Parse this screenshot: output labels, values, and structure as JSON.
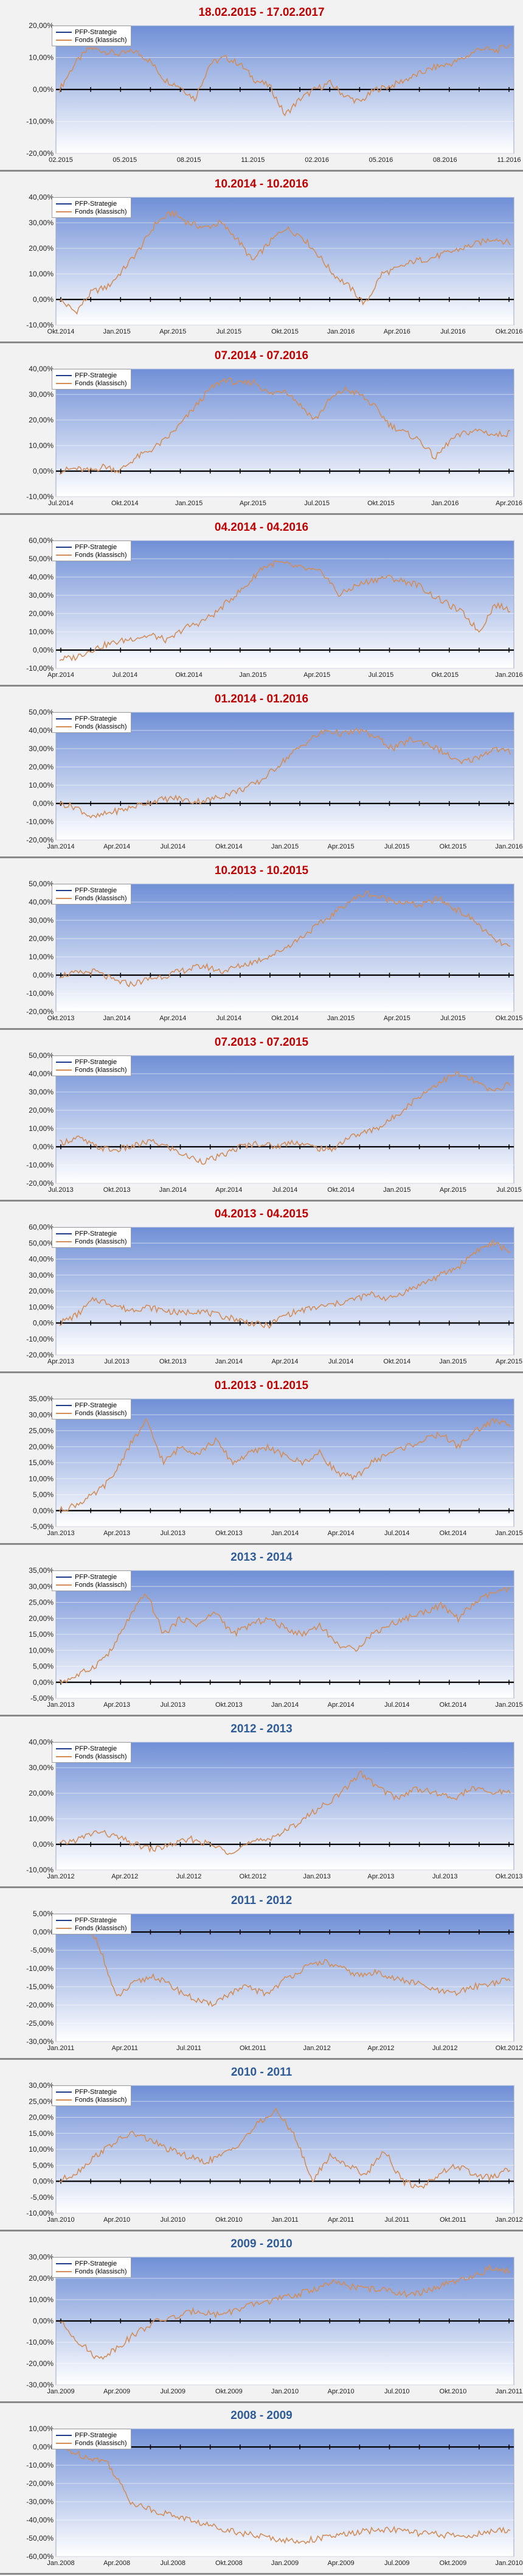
{
  "colors": {
    "strategy": "#1f3c88",
    "fund": "#d28e5a",
    "title_red": "#c00000",
    "title_blue": "#2e5c9a",
    "plot_top": "#6f8fd6",
    "plot_bottom": "#ffffff"
  },
  "chart_data": [
    {
      "type": "line",
      "title": "18.02.2015 - 17.02.2017",
      "title_color": "red",
      "series": [
        {
          "name": "PFP-Strategie"
        },
        {
          "name": "Fonds (klassisch)"
        }
      ],
      "yticks": [
        "20,00%",
        "10,00%",
        "0,00%",
        "-10,00%",
        "-20,00%"
      ],
      "ylim": [
        -20,
        20
      ],
      "xticks": [
        "02.2015",
        "05.2015",
        "08.2015",
        "11.2015",
        "02.2016",
        "05.2016",
        "08.2016",
        "11.2016"
      ],
      "fund_values": [
        0,
        8,
        13,
        12,
        11,
        12,
        9,
        3,
        1,
        -3,
        8,
        10,
        8,
        3,
        1,
        -8,
        -3,
        0,
        2,
        -2,
        -4,
        0,
        1,
        3,
        5,
        7,
        8,
        10,
        13,
        12,
        14
      ],
      "strategy_values": [
        0,
        0
      ]
    },
    {
      "type": "line",
      "title": "10.2014 - 10.2016",
      "title_color": "red",
      "series": [
        {
          "name": "PFP-Strategie"
        },
        {
          "name": "Fonds (klassisch)"
        }
      ],
      "yticks": [
        "40,00%",
        "30,00%",
        "20,00%",
        "10,00%",
        "0,00%",
        "-10,00%"
      ],
      "ylim": [
        -10,
        40
      ],
      "xticks": [
        "Okt.2014",
        "Jan.2015",
        "Apr.2015",
        "Jul.2015",
        "Okt.2015",
        "Jan.2016",
        "Apr.2016",
        "Jul.2016",
        "Okt.2016"
      ],
      "fund_values": [
        0,
        -5,
        3,
        5,
        12,
        20,
        30,
        34,
        30,
        28,
        30,
        24,
        15,
        22,
        28,
        25,
        18,
        10,
        5,
        -2,
        10,
        12,
        15,
        16,
        18,
        20,
        22,
        24,
        22
      ],
      "strategy_values": [
        0,
        0
      ]
    },
    {
      "type": "line",
      "title": "07.2014 - 07.2016",
      "title_color": "red",
      "series": [
        {
          "name": "PFP-Strategie"
        },
        {
          "name": "Fonds (klassisch)"
        }
      ],
      "yticks": [
        "40,00%",
        "30,00%",
        "20,00%",
        "10,00%",
        "0,00%",
        "-10,00%"
      ],
      "ylim": [
        -10,
        40
      ],
      "xticks": [
        "Jul.2014",
        "Okt.2014",
        "Jan.2015",
        "Apr.2015",
        "Jul.2015",
        "Okt.2015",
        "Jan.2016",
        "Apr.2016"
      ],
      "fund_values": [
        0,
        1,
        0,
        2,
        0,
        5,
        8,
        12,
        18,
        25,
        32,
        36,
        34,
        35,
        30,
        32,
        26,
        20,
        28,
        32,
        30,
        25,
        18,
        15,
        12,
        5,
        12,
        15,
        16,
        14,
        15
      ],
      "strategy_values": [
        0,
        0
      ]
    },
    {
      "type": "line",
      "title": "04.2014 - 04.2016",
      "title_color": "red",
      "series": [
        {
          "name": "PFP-Strategie"
        },
        {
          "name": "Fonds (klassisch)"
        }
      ],
      "yticks": [
        "60,00%",
        "50,00%",
        "40,00%",
        "30,00%",
        "20,00%",
        "10,00%",
        "0,00%",
        "-10,00%"
      ],
      "ylim": [
        -10,
        60
      ],
      "xticks": [
        "Apr.2014",
        "Jul.2014",
        "Okt.2014",
        "Jan.2015",
        "Apr.2015",
        "Jul.2015",
        "Okt.2015",
        "Jan.2016"
      ],
      "fund_values": [
        -5,
        -4,
        0,
        3,
        5,
        7,
        8,
        5,
        12,
        15,
        20,
        28,
        35,
        45,
        48,
        46,
        44,
        42,
        30,
        35,
        38,
        40,
        38,
        36,
        30,
        25,
        20,
        10,
        25,
        22
      ],
      "strategy_values": [
        0,
        0
      ]
    },
    {
      "type": "line",
      "title": "01.2014 - 01.2016",
      "title_color": "red",
      "series": [
        {
          "name": "PFP-Strategie"
        },
        {
          "name": "Fonds (klassisch)"
        }
      ],
      "yticks": [
        "50,00%",
        "40,00%",
        "30,00%",
        "20,00%",
        "10,00%",
        "0,00%",
        "-10,00%",
        "-20,00%"
      ],
      "ylim": [
        -20,
        50
      ],
      "xticks": [
        "Jan.2014",
        "Apr.2014",
        "Jul.2014",
        "Okt.2014",
        "Jan.2015",
        "Apr.2015",
        "Jul.2015",
        "Okt.2015",
        "Jan.2016"
      ],
      "fund_values": [
        0,
        -2,
        -8,
        -5,
        -3,
        0,
        2,
        3,
        1,
        2,
        5,
        8,
        12,
        20,
        28,
        35,
        40,
        38,
        40,
        36,
        30,
        35,
        33,
        28,
        22,
        25,
        30,
        28
      ],
      "strategy_values": [
        0,
        0
      ]
    },
    {
      "type": "line",
      "title": "10.2013 - 10.2015",
      "title_color": "red",
      "series": [
        {
          "name": "PFP-Strategie"
        },
        {
          "name": "Fonds (klassisch)"
        }
      ],
      "yticks": [
        "50,00%",
        "40,00%",
        "30,00%",
        "20,00%",
        "10,00%",
        "0,00%",
        "-10,00%",
        "-20,00%"
      ],
      "ylim": [
        -20,
        50
      ],
      "xticks": [
        "Okt.2013",
        "Jan.2014",
        "Apr.2014",
        "Jul.2014",
        "Okt.2014",
        "Jan.2015",
        "Apr.2015",
        "Jul.2015",
        "Okt.2015"
      ],
      "fund_values": [
        0,
        1,
        2,
        -3,
        -5,
        -2,
        0,
        3,
        5,
        2,
        5,
        8,
        12,
        18,
        25,
        32,
        40,
        45,
        42,
        40,
        38,
        42,
        36,
        30,
        20,
        15
      ],
      "strategy_values": [
        0,
        0
      ]
    },
    {
      "type": "line",
      "title": "07.2013 - 07.2015",
      "title_color": "red",
      "series": [
        {
          "name": "PFP-Strategie"
        },
        {
          "name": "Fonds (klassisch)"
        }
      ],
      "yticks": [
        "50,00%",
        "40,00%",
        "30,00%",
        "20,00%",
        "10,00%",
        "0,00%",
        "-10,00%",
        "-20,00%"
      ],
      "ylim": [
        -20,
        50
      ],
      "xticks": [
        "Jul.2013",
        "Okt.2013",
        "Jan.2014",
        "Apr.2014",
        "Jul.2014",
        "Okt.2014",
        "Jan.2015",
        "Apr.2015",
        "Jul.2015"
      ],
      "fund_values": [
        2,
        5,
        0,
        -2,
        0,
        3,
        0,
        -5,
        -8,
        -5,
        0,
        2,
        0,
        3,
        0,
        -2,
        5,
        8,
        12,
        20,
        28,
        35,
        40,
        36,
        30,
        35
      ],
      "strategy_values": [
        0,
        0
      ]
    },
    {
      "type": "line",
      "title": "04.2013 - 04.2015",
      "title_color": "red",
      "series": [
        {
          "name": "PFP-Strategie"
        },
        {
          "name": "Fonds (klassisch)"
        }
      ],
      "yticks": [
        "60,00%",
        "50,00%",
        "40,00%",
        "30,00%",
        "20,00%",
        "10,00%",
        "0,00%",
        "-10,00%",
        "-20,00%"
      ],
      "ylim": [
        -20,
        60
      ],
      "xticks": [
        "Apr.2013",
        "Jul.2013",
        "Okt.2013",
        "Jan.2014",
        "Apr.2014",
        "Jul.2014",
        "Okt.2014",
        "Jan.2015",
        "Apr.2015"
      ],
      "fund_values": [
        0,
        5,
        15,
        12,
        8,
        10,
        8,
        6,
        8,
        5,
        3,
        0,
        -2,
        5,
        8,
        10,
        12,
        15,
        18,
        15,
        20,
        25,
        30,
        35,
        45,
        50,
        45
      ],
      "strategy_values": [
        0,
        0
      ]
    },
    {
      "type": "line",
      "title": "01.2013 - 01.2015",
      "title_color": "red",
      "series": [
        {
          "name": "PFP-Strategie"
        },
        {
          "name": "Fonds (klassisch)"
        }
      ],
      "yticks": [
        "35,00%",
        "30,00%",
        "25,00%",
        "20,00%",
        "15,00%",
        "10,00%",
        "5,00%",
        "0,00%",
        "-5,00%"
      ],
      "ylim": [
        -5,
        35
      ],
      "xticks": [
        "Jan.2013",
        "Apr.2013",
        "Jul.2013",
        "Okt.2013",
        "Jan.2014",
        "Apr.2014",
        "Jul.2014",
        "Okt.2014",
        "Jan.2015"
      ],
      "fund_values": [
        0,
        2,
        5,
        10,
        20,
        28,
        15,
        20,
        18,
        22,
        15,
        18,
        20,
        17,
        15,
        18,
        12,
        10,
        15,
        18,
        20,
        22,
        24,
        20,
        25,
        28,
        27
      ],
      "strategy_values": [
        0,
        0
      ]
    },
    {
      "type": "line",
      "title": "2013 - 2014",
      "title_color": "blue",
      "series": [
        {
          "name": "PFP-Strategie"
        },
        {
          "name": "Fonds (klassisch)"
        }
      ],
      "yticks": [
        "35,00%",
        "30,00%",
        "25,00%",
        "20,00%",
        "15,00%",
        "10,00%",
        "5,00%",
        "0,00%",
        "-5,00%"
      ],
      "ylim": [
        -5,
        35
      ],
      "xticks": [
        "Jan.2013",
        "Apr.2013",
        "Jul.2013",
        "Okt.2013",
        "Jan.2014",
        "Apr.2014",
        "Jul.2014",
        "Okt.2014",
        "Jan.2015"
      ],
      "fund_values": [
        0,
        2,
        5,
        10,
        20,
        28,
        15,
        20,
        18,
        22,
        15,
        18,
        20,
        17,
        15,
        18,
        12,
        10,
        15,
        18,
        20,
        22,
        24,
        20,
        25,
        28,
        29
      ],
      "strategy_values": [
        0,
        0
      ]
    },
    {
      "type": "line",
      "title": "2012 - 2013",
      "title_color": "blue",
      "series": [
        {
          "name": "PFP-Strategie"
        },
        {
          "name": "Fonds (klassisch)"
        }
      ],
      "yticks": [
        "40,00%",
        "30,00%",
        "20,00%",
        "10,00%",
        "0,00%",
        "-10,00%"
      ],
      "ylim": [
        -10,
        40
      ],
      "xticks": [
        "Jan.2012",
        "Apr.2012",
        "Jul.2012",
        "Okt.2012",
        "Jan.2013",
        "Apr.2013",
        "Jul.2013",
        "Okt.2013"
      ],
      "fund_values": [
        0,
        2,
        5,
        3,
        0,
        -2,
        0,
        2,
        0,
        -3,
        0,
        2,
        5,
        10,
        15,
        20,
        28,
        22,
        18,
        22,
        20,
        18,
        22,
        20,
        21
      ],
      "strategy_values": [
        0,
        0
      ]
    },
    {
      "type": "line",
      "title": "2011 - 2012",
      "title_color": "blue",
      "series": [
        {
          "name": "PFP-Strategie"
        },
        {
          "name": "Fonds (klassisch)"
        }
      ],
      "yticks": [
        "5,00%",
        "0,00%",
        "-5,00%",
        "-10,00%",
        "-15,00%",
        "-20,00%",
        "-25,00%",
        "-30,00%"
      ],
      "ylim": [
        -30,
        5
      ],
      "xticks": [
        "Jan.2011",
        "Apr.2011",
        "Jul.2011",
        "Okt.2011",
        "Jan.2012",
        "Apr.2012",
        "Jul.2012",
        "Okt.2012"
      ],
      "fund_values": [
        0,
        2,
        -2,
        -18,
        -14,
        -12,
        -15,
        -18,
        -20,
        -17,
        -15,
        -17,
        -13,
        -10,
        -8,
        -10,
        -12,
        -11,
        -13,
        -14,
        -16,
        -17,
        -15,
        -14,
        -13
      ],
      "strategy_values": [
        0,
        0
      ]
    },
    {
      "type": "line",
      "title": "2010 - 2011",
      "title_color": "blue",
      "series": [
        {
          "name": "PFP-Strategie"
        },
        {
          "name": "Fonds (klassisch)"
        }
      ],
      "yticks": [
        "30,00%",
        "25,00%",
        "20,00%",
        "15,00%",
        "10,00%",
        "5,00%",
        "0,00%",
        "-5,00%",
        "-10,00%"
      ],
      "ylim": [
        -10,
        30
      ],
      "xticks": [
        "Jan.2010",
        "Apr.2010",
        "Jul.2010",
        "Okt.2010",
        "Jan.2011",
        "Apr.2011",
        "Jul.2011",
        "Okt.2011",
        "Jan.2012"
      ],
      "fund_values": [
        0,
        3,
        8,
        12,
        15,
        13,
        10,
        8,
        6,
        8,
        12,
        18,
        22,
        15,
        0,
        8,
        5,
        2,
        10,
        0,
        -2,
        2,
        5,
        2,
        1,
        4
      ],
      "strategy_values": [
        0,
        0
      ]
    },
    {
      "type": "line",
      "title": "2009 - 2010",
      "title_color": "blue",
      "series": [
        {
          "name": "PFP-Strategie"
        },
        {
          "name": "Fonds (klassisch)"
        }
      ],
      "yticks": [
        "30,00%",
        "20,00%",
        "10,00%",
        "0,00%",
        "-10,00%",
        "-20,00%",
        "-30,00%"
      ],
      "ylim": [
        -30,
        30
      ],
      "xticks": [
        "Jan.2009",
        "Apr.2009",
        "Jul.2009",
        "Okt.2009",
        "Jan.2010",
        "Apr.2010",
        "Jul.2010",
        "Okt.2010",
        "Jan.2011"
      ],
      "fund_values": [
        0,
        -10,
        -18,
        -12,
        -5,
        0,
        2,
        5,
        3,
        5,
        8,
        10,
        12,
        15,
        18,
        16,
        15,
        14,
        12,
        15,
        18,
        20,
        25,
        23
      ],
      "strategy_values": [
        0,
        0
      ]
    },
    {
      "type": "line",
      "title": "2008 - 2009",
      "title_color": "blue",
      "series": [
        {
          "name": "PFP-Strategie"
        },
        {
          "name": "Fonds (klassisch)"
        }
      ],
      "yticks": [
        "10,00%",
        "0,00%",
        "-10,00%",
        "-20,00%",
        "-30,00%",
        "-40,00%",
        "-50,00%",
        "-60,00%"
      ],
      "ylim": [
        -60,
        10
      ],
      "xticks": [
        "Jan.2008",
        "Apr.2008",
        "Jul.2008",
        "Okt.2008",
        "Jan.2009",
        "Apr.2009",
        "Jul.2009",
        "Okt.2009",
        "Jan.2010"
      ],
      "fund_values": [
        0,
        -5,
        -8,
        -30,
        -35,
        -38,
        -42,
        -45,
        -48,
        -50,
        -52,
        -50,
        -48,
        -46,
        -45,
        -47,
        -48,
        -49,
        -47,
        -45
      ],
      "strategy_values": [
        0,
        0
      ]
    }
  ]
}
